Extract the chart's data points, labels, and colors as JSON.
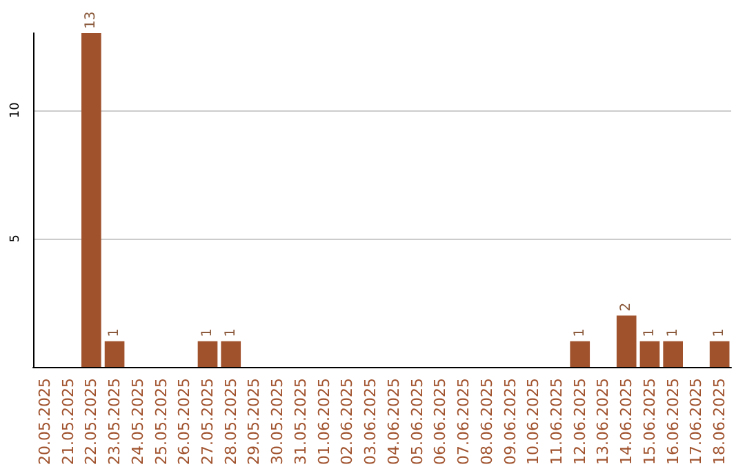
{
  "chart_data": {
    "type": "bar",
    "categories": [
      "20.05.2025",
      "21.05.2025",
      "22.05.2025",
      "23.05.2025",
      "24.05.2025",
      "25.05.2025",
      "26.05.2025",
      "27.05.2025",
      "28.05.2025",
      "29.05.2025",
      "30.05.2025",
      "31.05.2025",
      "01.06.2025",
      "02.06.2025",
      "03.06.2025",
      "04.06.2025",
      "05.06.2025",
      "06.06.2025",
      "07.06.2025",
      "08.06.2025",
      "09.06.2025",
      "10.06.2025",
      "11.06.2025",
      "12.06.2025",
      "13.06.2025",
      "14.06.2025",
      "15.06.2025",
      "16.06.2025",
      "17.06.2025",
      "18.06.2025"
    ],
    "values": [
      0,
      0,
      13,
      1,
      0,
      0,
      0,
      1,
      1,
      0,
      0,
      0,
      0,
      0,
      0,
      0,
      0,
      0,
      0,
      0,
      0,
      0,
      0,
      1,
      0,
      2,
      1,
      1,
      0,
      1
    ],
    "value_labels": [
      null,
      null,
      "13",
      "1",
      null,
      null,
      null,
      "1",
      "1",
      null,
      null,
      null,
      null,
      null,
      null,
      null,
      null,
      null,
      null,
      null,
      null,
      null,
      null,
      "1",
      null,
      "2",
      "1",
      "1",
      null,
      "1"
    ],
    "color": "#a0522d",
    "ylim": [
      0,
      13
    ],
    "yticks": [
      5,
      10
    ],
    "grid": "y"
  }
}
